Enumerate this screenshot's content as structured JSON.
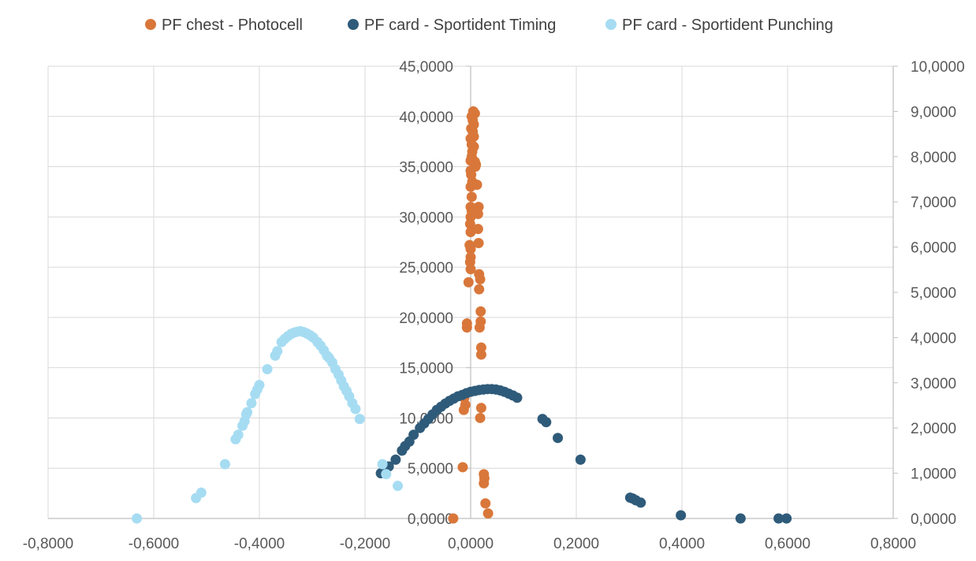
{
  "chart_data": {
    "type": "scatter",
    "title": "",
    "xlabel": "",
    "ylabel": "",
    "xlim": [
      -0.8,
      0.8
    ],
    "ylim": [
      0,
      45
    ],
    "y2lim": [
      0,
      10
    ],
    "grid": true,
    "legend": "top",
    "x_tick_labels": [
      "-0,8000",
      "-0,6000",
      "-0,4000",
      "-0,2000",
      "0,0000",
      "0,2000",
      "0,4000",
      "0,6000",
      "0,8000"
    ],
    "y_tick_labels": [
      "0,0000",
      "5,0000",
      "10,0000",
      "15,0000",
      "20,0000",
      "25,0000",
      "30,0000",
      "35,0000",
      "40,0000",
      "45,0000"
    ],
    "y2_tick_labels": [
      "0,0000",
      "1,0000",
      "2,0000",
      "3,0000",
      "4,0000",
      "5,0000",
      "6,0000",
      "7,0000",
      "8,0000",
      "9,0000",
      "10,0000"
    ],
    "series": [
      {
        "name": "PF chest - Photocell",
        "color": "#D9773A",
        "axis": "primary",
        "points": [
          [
            -0.033,
            0.0
          ],
          [
            0.033,
            0.5
          ],
          [
            0.028,
            1.5
          ],
          [
            0.025,
            3.5
          ],
          [
            0.026,
            4.0
          ],
          [
            0.025,
            4.4
          ],
          [
            -0.015,
            5.1
          ],
          [
            0.018,
            10.0
          ],
          [
            0.02,
            11.0
          ],
          [
            -0.013,
            10.8
          ],
          [
            -0.01,
            11.3
          ],
          [
            -0.012,
            12.0
          ],
          [
            0.02,
            16.3
          ],
          [
            0.02,
            17.0
          ],
          [
            0.017,
            19.0
          ],
          [
            0.019,
            19.6
          ],
          [
            -0.007,
            19.0
          ],
          [
            -0.007,
            19.4
          ],
          [
            0.019,
            20.6
          ],
          [
            0.016,
            22.8
          ],
          [
            0.018,
            23.8
          ],
          [
            0.016,
            24.3
          ],
          [
            -0.004,
            23.5
          ],
          [
            0.0,
            24.8
          ],
          [
            -0.001,
            25.5
          ],
          [
            0.0,
            26.0
          ],
          [
            0.0,
            26.8
          ],
          [
            -0.002,
            27.2
          ],
          [
            0.015,
            27.4
          ],
          [
            0.014,
            28.8
          ],
          [
            0.0,
            28.5
          ],
          [
            -0.001,
            29.3
          ],
          [
            0.0,
            30.0
          ],
          [
            0.002,
            30.6
          ],
          [
            0.014,
            30.3
          ],
          [
            0.015,
            31.0
          ],
          [
            0.0,
            31.0
          ],
          [
            0.002,
            32.0
          ],
          [
            0.0,
            33.0
          ],
          [
            0.003,
            33.5
          ],
          [
            0.012,
            33.2
          ],
          [
            0.001,
            34.2
          ],
          [
            0.0,
            34.6
          ],
          [
            0.009,
            35.0
          ],
          [
            0.008,
            35.5
          ],
          [
            0.0,
            35.6
          ],
          [
            0.002,
            36.0
          ],
          [
            0.003,
            36.5
          ],
          [
            0.006,
            37.0
          ],
          [
            0.002,
            37.2
          ],
          [
            0.0,
            37.8
          ],
          [
            0.006,
            38.0
          ],
          [
            0.004,
            38.5
          ],
          [
            0.001,
            38.8
          ],
          [
            0.006,
            39.2
          ],
          [
            0.004,
            39.6
          ],
          [
            0.002,
            40.0
          ],
          [
            0.005,
            40.5
          ],
          [
            0.008,
            40.3
          ],
          [
            0.01,
            35.2
          ]
        ]
      },
      {
        "name": "PF card - Sportident Timing",
        "color": "#2F5B7A",
        "axis": "secondary",
        "points": [
          [
            0.598,
            0.0
          ],
          [
            0.583,
            0.0
          ],
          [
            0.511,
            0.0
          ],
          [
            0.398,
            0.07
          ],
          [
            0.322,
            0.35
          ],
          [
            0.313,
            0.4
          ],
          [
            0.307,
            0.44
          ],
          [
            0.302,
            0.46
          ],
          [
            0.208,
            1.3
          ],
          [
            0.165,
            1.78
          ],
          [
            0.143,
            2.13
          ],
          [
            0.136,
            2.2
          ],
          [
            0.088,
            2.67
          ],
          [
            0.08,
            2.72
          ],
          [
            0.072,
            2.76
          ],
          [
            0.064,
            2.8
          ],
          [
            0.056,
            2.83
          ],
          [
            0.048,
            2.85
          ],
          [
            0.04,
            2.86
          ],
          [
            0.032,
            2.86
          ],
          [
            0.024,
            2.85
          ],
          [
            0.016,
            2.84
          ],
          [
            0.008,
            2.82
          ],
          [
            0.0,
            2.8
          ],
          [
            -0.008,
            2.77
          ],
          [
            -0.016,
            2.73
          ],
          [
            -0.024,
            2.7
          ],
          [
            -0.032,
            2.65
          ],
          [
            -0.04,
            2.6
          ],
          [
            -0.048,
            2.54
          ],
          [
            -0.056,
            2.47
          ],
          [
            -0.064,
            2.4
          ],
          [
            -0.072,
            2.3
          ],
          [
            -0.08,
            2.2
          ],
          [
            -0.088,
            2.1
          ],
          [
            -0.096,
            2.0
          ],
          [
            -0.108,
            1.85
          ],
          [
            -0.116,
            1.7
          ],
          [
            -0.124,
            1.6
          ],
          [
            -0.13,
            1.5
          ],
          [
            -0.142,
            1.3
          ],
          [
            -0.155,
            1.15
          ],
          [
            -0.17,
            1.0
          ]
        ]
      },
      {
        "name": "PF card - Sportident Punching",
        "color": "#A6DCF2",
        "axis": "secondary",
        "points": [
          [
            -0.632,
            0.0
          ],
          [
            -0.52,
            0.45
          ],
          [
            -0.51,
            0.57
          ],
          [
            -0.465,
            1.2
          ],
          [
            -0.445,
            1.75
          ],
          [
            -0.44,
            1.85
          ],
          [
            -0.432,
            2.05
          ],
          [
            -0.428,
            2.15
          ],
          [
            -0.425,
            2.3
          ],
          [
            -0.423,
            2.35
          ],
          [
            -0.415,
            2.55
          ],
          [
            -0.408,
            2.75
          ],
          [
            -0.404,
            2.85
          ],
          [
            -0.4,
            2.95
          ],
          [
            -0.385,
            3.3
          ],
          [
            -0.37,
            3.6
          ],
          [
            -0.366,
            3.7
          ],
          [
            -0.358,
            3.9
          ],
          [
            -0.352,
            3.97
          ],
          [
            -0.346,
            4.03
          ],
          [
            -0.34,
            4.08
          ],
          [
            -0.334,
            4.11
          ],
          [
            -0.328,
            4.13
          ],
          [
            -0.322,
            4.14
          ],
          [
            -0.316,
            4.12
          ],
          [
            -0.31,
            4.09
          ],
          [
            -0.304,
            4.05
          ],
          [
            -0.298,
            4.0
          ],
          [
            -0.29,
            3.9
          ],
          [
            -0.284,
            3.82
          ],
          [
            -0.278,
            3.72
          ],
          [
            -0.272,
            3.6
          ],
          [
            -0.268,
            3.55
          ],
          [
            -0.262,
            3.45
          ],
          [
            -0.256,
            3.3
          ],
          [
            -0.25,
            3.18
          ],
          [
            -0.245,
            3.05
          ],
          [
            -0.24,
            2.92
          ],
          [
            -0.235,
            2.82
          ],
          [
            -0.23,
            2.7
          ],
          [
            -0.224,
            2.55
          ],
          [
            -0.218,
            2.42
          ],
          [
            -0.21,
            2.2
          ],
          [
            -0.167,
            1.2
          ],
          [
            -0.16,
            0.98
          ],
          [
            -0.138,
            0.72
          ]
        ]
      }
    ]
  }
}
